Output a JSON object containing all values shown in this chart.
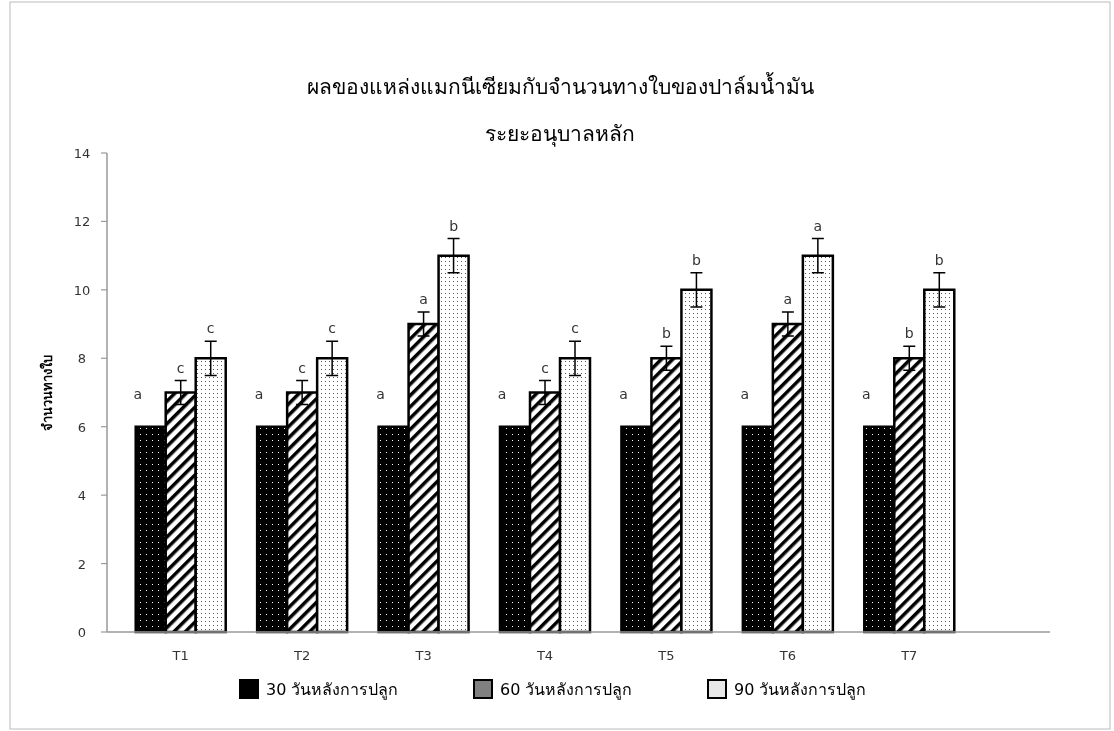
{
  "chart_data": {
    "type": "bar",
    "title": "ผลของแหล่งแมกนีเซียมกับจำนวนทางใบของปาล์มน้ำมัน",
    "subtitle": "ระยะอนุบาลหลัก",
    "ylabel": "จำนวนทางใบ",
    "categories": [
      "T1",
      "T2",
      "T3",
      "T4",
      "T5",
      "T6",
      "T7"
    ],
    "series": [
      {
        "name": "30 วันหลังการปลูก",
        "color": "#000000",
        "values": [
          6,
          6,
          6,
          6,
          6,
          6,
          6
        ],
        "value_labels": [
          "a",
          "a",
          "a",
          "a",
          "a",
          "a",
          "a"
        ]
      },
      {
        "name": "60 วันหลังการปลูก",
        "color": "#808080",
        "values": [
          7,
          7,
          9,
          7,
          8,
          9,
          8
        ],
        "errors": [
          0.35,
          0.35,
          0.35,
          0.35,
          0.35,
          0.35,
          0.35
        ],
        "value_labels": [
          "c",
          "c",
          "a",
          "c",
          "b",
          "a",
          "b"
        ]
      },
      {
        "name": "90 วันหลังการปลูก",
        "color": "#e8e8e8",
        "values": [
          8,
          8,
          11,
          8,
          10,
          11,
          10
        ],
        "errors": [
          0.5,
          0.5,
          0.5,
          0.5,
          0.5,
          0.5,
          0.5
        ],
        "value_labels": [
          "c",
          "c",
          "b",
          "c",
          "b",
          "a",
          "b"
        ]
      }
    ],
    "ylim": [
      0,
      14
    ],
    "yticks": [
      0,
      2,
      4,
      6,
      8,
      10,
      12,
      14
    ],
    "grid": false,
    "legend": "bottom"
  }
}
